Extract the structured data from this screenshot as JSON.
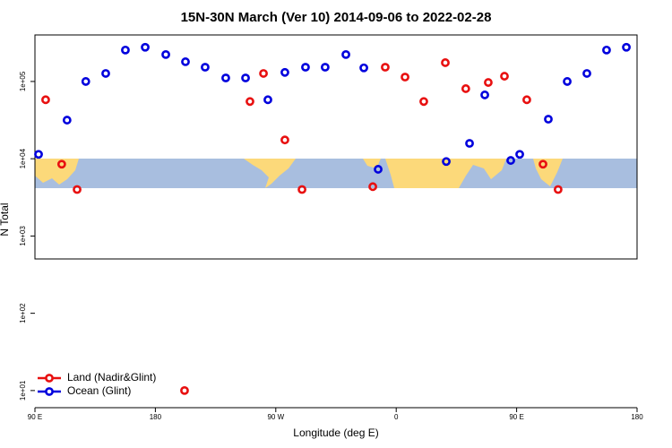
{
  "chart_data": {
    "type": "scatter",
    "title": "15N-30N March (Ver 10)   2014-09-06 to 2022-02-28",
    "xlabel": "Longitude (deg E)",
    "ylabel": "N Total",
    "xlim": [
      90,
      540
    ],
    "xticks": [
      {
        "value": 90,
        "label": "90 E"
      },
      {
        "value": 180,
        "label": "180"
      },
      {
        "value": 270,
        "label": "90 W"
      },
      {
        "value": 360,
        "label": "0"
      },
      {
        "value": 450,
        "label": "90 E"
      },
      {
        "value": 540,
        "label": "180"
      }
    ],
    "ylim": [
      6,
      400000
    ],
    "log_y": true,
    "yticks": [
      {
        "value": 10,
        "label": "1e+01"
      },
      {
        "value": 100,
        "label": "1e+02"
      },
      {
        "value": 1000,
        "label": "1e+03"
      },
      {
        "value": 10000,
        "label": "1e+04"
      },
      {
        "value": 100000,
        "label": "1e+05"
      }
    ],
    "legend": "bottom-left",
    "series": [
      {
        "name": "Land (Nadir&Glint)",
        "color": "#e81010",
        "x": [
          98,
          110,
          121.5,
          250.7,
          260.8,
          276.8,
          289.6,
          342.5,
          351.8,
          366.6,
          380.6,
          396.7,
          412,
          428.8,
          440.9,
          457.6,
          469.7,
          481,
          201.8
        ],
        "values": [
          58000,
          8500,
          4000,
          55000,
          127000,
          17500,
          4000,
          4350,
          153000,
          114000,
          55000,
          175000,
          80700,
          97000,
          117000,
          58000,
          8500,
          4000,
          10
        ]
      },
      {
        "name": "Ocean (Glint)",
        "color": "#0000dd",
        "x": [
          92.7,
          114,
          128,
          142.9,
          157.6,
          172.4,
          187.8,
          202.5,
          217.2,
          232.6,
          247.4,
          264.1,
          276.8,
          292.2,
          306.9,
          322.4,
          335.8,
          346.5,
          397.4,
          414.8,
          426.2,
          445.6,
          452.3,
          473.7,
          487.8,
          502.5,
          517.2,
          532
        ],
        "values": [
          11400,
          31600,
          100000,
          127000,
          255000,
          277000,
          223000,
          180000,
          153000,
          111000,
          111000,
          58000,
          131000,
          153000,
          153000,
          223000,
          150000,
          7300,
          9200,
          15800,
          67000,
          9500,
          11400,
          32500,
          100000,
          127000,
          255000,
          277000
        ]
      }
    ]
  }
}
